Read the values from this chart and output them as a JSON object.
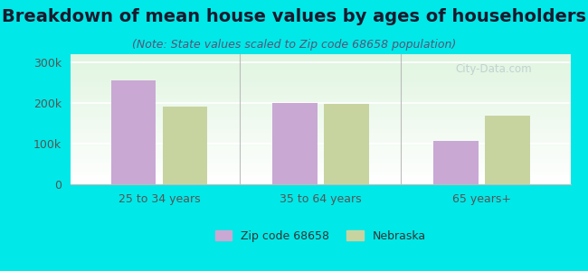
{
  "title": "Breakdown of mean house values by ages of householders",
  "subtitle": "(Note: State values scaled to Zip code 68658 population)",
  "categories": [
    "25 to 34 years",
    "35 to 64 years",
    "65 years+"
  ],
  "series": [
    {
      "name": "Zip code 68658",
      "values": [
        255000,
        200000,
        107000
      ],
      "color": "#c9a8d4"
    },
    {
      "name": "Nebraska",
      "values": [
        190000,
        197000,
        168000
      ],
      "color": "#c8d4a0"
    }
  ],
  "ylim": [
    0,
    320000
  ],
  "yticks": [
    0,
    100000,
    200000,
    300000
  ],
  "ytick_labels": [
    "0",
    "100k",
    "200k",
    "300k"
  ],
  "background_color": "#00e8e8",
  "bar_width": 0.28,
  "title_fontsize": 14,
  "subtitle_fontsize": 9,
  "tick_fontsize": 9,
  "legend_fontsize": 9,
  "watermark": "City-Data.com"
}
